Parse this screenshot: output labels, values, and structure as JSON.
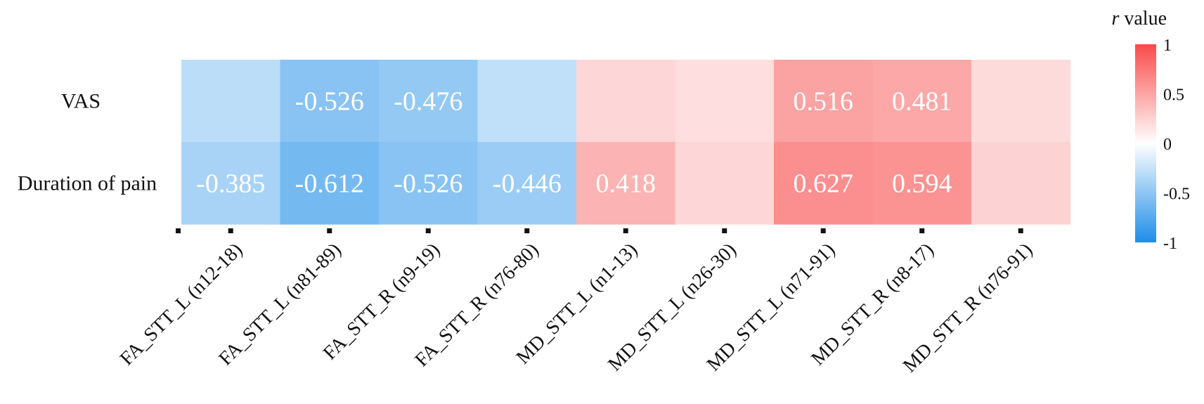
{
  "chart_data": {
    "type": "heatmap",
    "rows": [
      "VAS",
      "Duration of pain"
    ],
    "columns": [
      "FA_STT_L (n12-18)",
      "FA_STT_L (n81-89)",
      "FA_STT_R (n9-19)",
      "FA_STT_R (n76-80)",
      "MD_STT_L (n1-13)",
      "MD_STT_L (n26-30)",
      "MD_STT_L (n71-91)",
      "MD_STT_R (n8-17)",
      "MD_STT_R (n76-91)"
    ],
    "values": [
      [
        -0.3,
        -0.526,
        -0.476,
        -0.28,
        0.22,
        0.18,
        0.516,
        0.481,
        0.2
      ],
      [
        -0.385,
        -0.612,
        -0.526,
        -0.446,
        0.418,
        0.22,
        0.627,
        0.594,
        0.25
      ]
    ],
    "labels": [
      [
        "",
        "-0.526",
        "-0.476",
        "",
        "",
        "",
        "0.516",
        "0.481",
        ""
      ],
      [
        "-0.385",
        "-0.612",
        "-0.526",
        "-0.446",
        "0.418",
        "",
        "0.627",
        "0.594",
        ""
      ]
    ],
    "colorbar": {
      "title": "r value",
      "title_italic_part": "r",
      "title_rest": " value",
      "range": [
        -1,
        1
      ],
      "ticks": [
        "1",
        "0.5",
        "0",
        "-0.5",
        "-1"
      ],
      "tick_values": [
        1,
        0.5,
        0,
        -0.5,
        -1
      ],
      "colors": {
        "neg": "#1e8de8",
        "mid": "#ffffff",
        "pos": "#f84a4a"
      }
    },
    "grid": false
  }
}
